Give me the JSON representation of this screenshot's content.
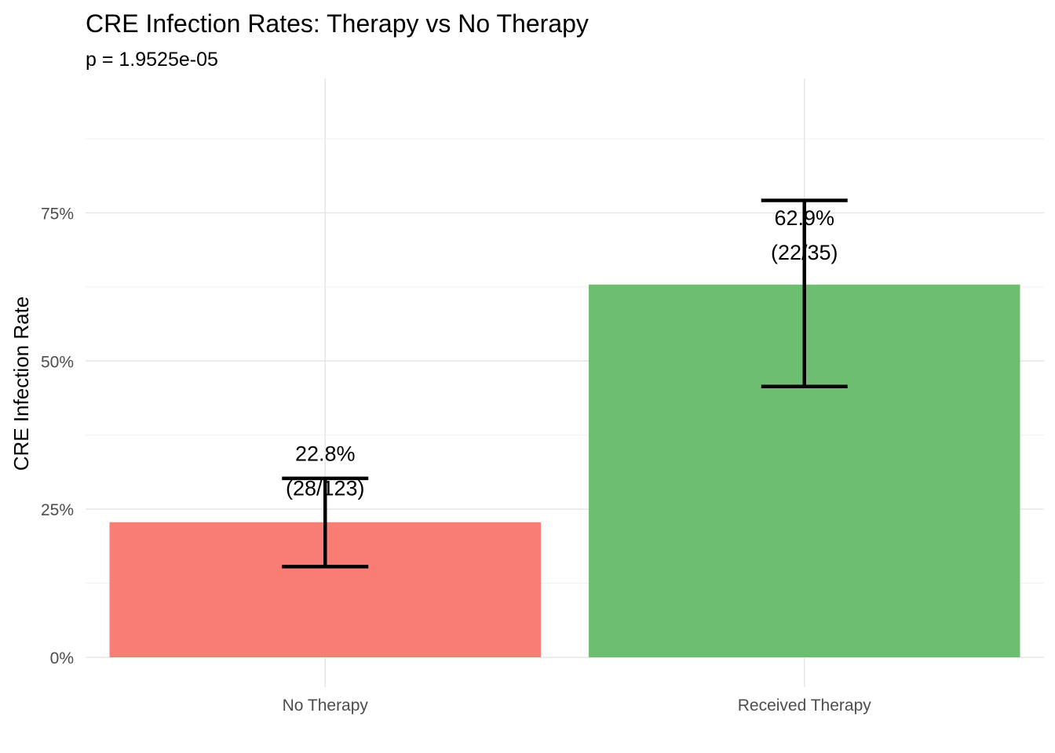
{
  "chart_data": {
    "type": "bar",
    "title": "CRE Infection Rates: Therapy vs No Therapy",
    "subtitle": "p = 1.9525e-05",
    "xlabel": "",
    "ylabel": "CRE Infection Rate",
    "categories": [
      "No Therapy",
      "Received Therapy"
    ],
    "values": [
      0.228,
      0.629
    ],
    "error_low": [
      0.153,
      0.457
    ],
    "error_high": [
      0.302,
      0.771
    ],
    "labels": [
      {
        "pct": "22.8%",
        "count": "(28/123)"
      },
      {
        "pct": "62.9%",
        "count": "(22/35)"
      }
    ],
    "colors": [
      "#F8766D",
      "#66BB6A"
    ],
    "ylim": [
      0,
      0.9
    ],
    "yticks": [
      {
        "value": 0,
        "label": "0%"
      },
      {
        "value": 0.25,
        "label": "25%"
      },
      {
        "value": 0.5,
        "label": "50%"
      },
      {
        "value": 0.75,
        "label": "75%"
      }
    ],
    "grid": true,
    "legend": "none"
  }
}
